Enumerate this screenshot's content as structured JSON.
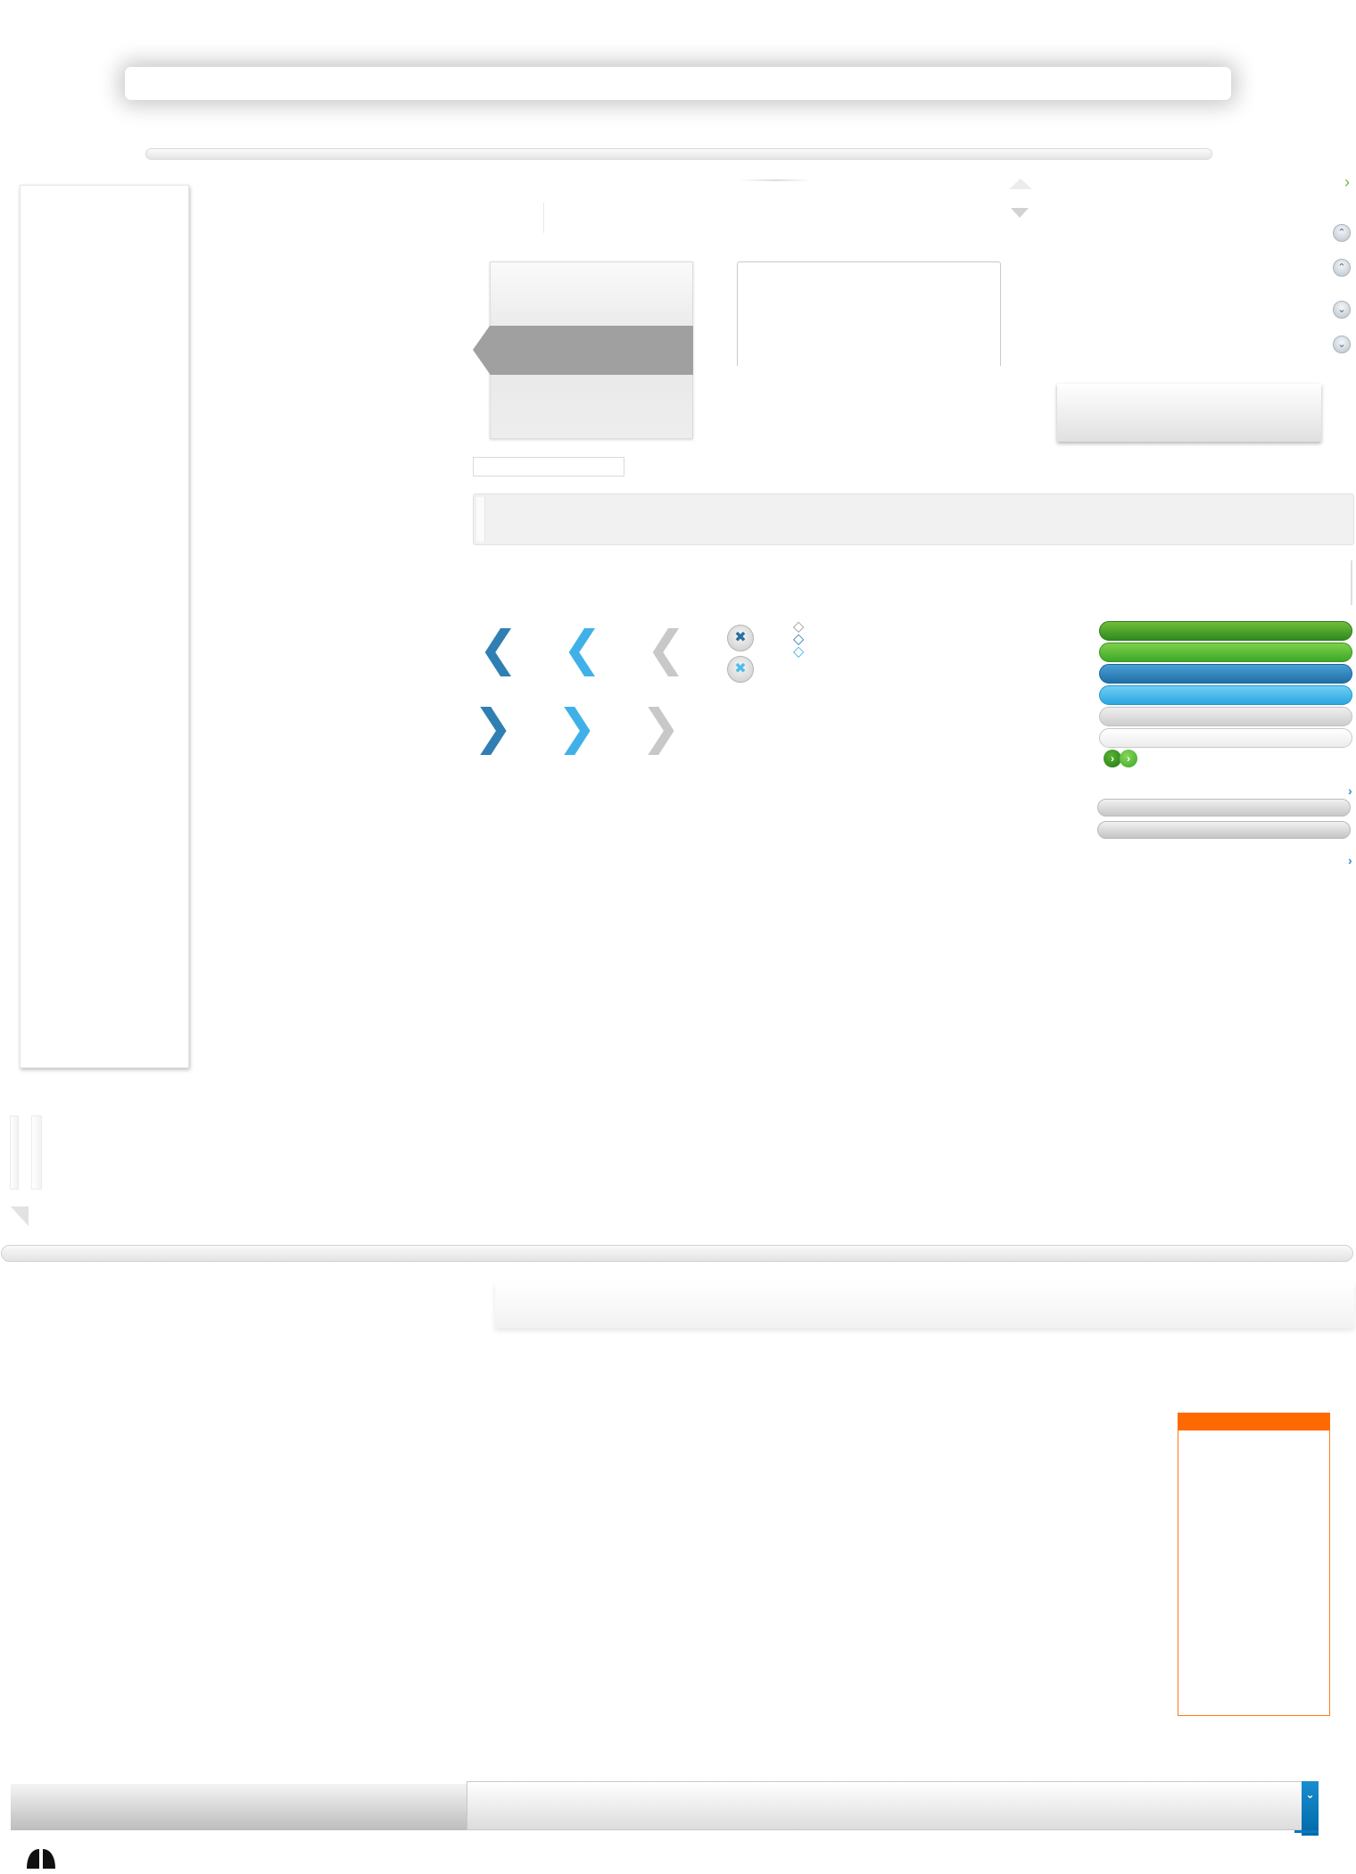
{
  "colors": {
    "accent_blue": "#2f7fb3",
    "accent_light_blue": "#40b1e8",
    "accent_green": "#3ba828",
    "accent_orange": "#ff6a00",
    "neutral_grey": "#a0a0a0"
  },
  "icons": {
    "top_right_chevron": "chevron-right-icon",
    "scroll_up": "chevron-up-icon",
    "scroll_down": "chevron-down-icon",
    "nav_prev": "chevron-left-icon",
    "nav_next": "chevron-right-icon",
    "close": "close-icon",
    "play": "play-icon",
    "bottom_toggle": "chevron-down-icon"
  },
  "glyphs": {
    "left_chevron": "❮",
    "right_chevron": "❯",
    "close": "✖",
    "up": "⌃",
    "down": "⌄",
    "small_right": "›",
    "diamond": "◇"
  }
}
